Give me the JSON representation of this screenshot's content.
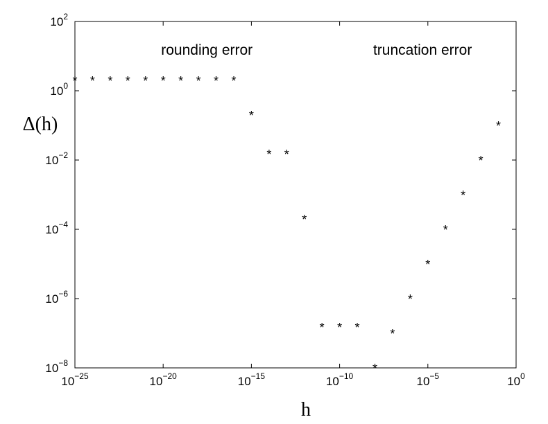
{
  "chart_data": {
    "type": "scatter",
    "xscale": "log",
    "yscale": "log",
    "xlim": [
      1e-25,
      1
    ],
    "ylim": [
      1e-08,
      100
    ],
    "xlabel": "h",
    "ylabel": "Δ(h)",
    "marker": "*",
    "grid": false,
    "x_ticks": [
      {
        "base": "10",
        "exp": "−25",
        "value": 1e-25
      },
      {
        "base": "10",
        "exp": "−20",
        "value": 1e-20
      },
      {
        "base": "10",
        "exp": "−15",
        "value": 1e-15
      },
      {
        "base": "10",
        "exp": "−10",
        "value": 1e-10
      },
      {
        "base": "10",
        "exp": "−5",
        "value": 1e-05
      },
      {
        "base": "10",
        "exp": "0",
        "value": 1
      }
    ],
    "y_ticks": [
      {
        "base": "10",
        "exp": "−8",
        "value": 1e-08
      },
      {
        "base": "10",
        "exp": "−6",
        "value": 1e-06
      },
      {
        "base": "10",
        "exp": "−4",
        "value": 0.0001
      },
      {
        "base": "10",
        "exp": "−2",
        "value": 0.01
      },
      {
        "base": "10",
        "exp": "0",
        "value": 1
      },
      {
        "base": "10",
        "exp": "2",
        "value": 100
      }
    ],
    "annotations": [
      {
        "text": "rounding error",
        "x": 3e-18,
        "y": 11
      },
      {
        "text": "truncation error",
        "x": 5e-06,
        "y": 11
      }
    ],
    "series": [
      {
        "x": [
          1e-25,
          1e-24,
          1e-23,
          1e-22,
          1e-21,
          1e-20,
          1e-19,
          1e-18,
          1e-17,
          1e-16,
          1e-15,
          1e-14,
          1e-13,
          1e-12,
          1e-11,
          1e-10,
          1e-09,
          1e-08,
          1e-07,
          1e-06,
          1e-05,
          0.0001,
          0.001,
          0.01,
          0.1
        ],
        "y": [
          2,
          2,
          2,
          2,
          2,
          2,
          2,
          2,
          2,
          2,
          0.2,
          0.015,
          0.015,
          0.0002,
          1.5e-07,
          1.5e-07,
          1.5e-07,
          1e-08,
          1e-07,
          1e-06,
          1e-05,
          0.0001,
          0.001,
          0.01,
          0.1
        ]
      }
    ]
  }
}
